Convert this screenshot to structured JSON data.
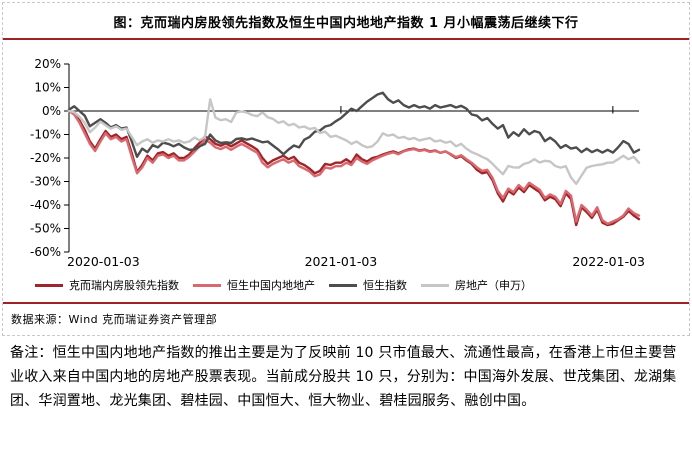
{
  "figure": {
    "title": "图：克而瑞内房股领先指数及恒生中国内地地产指数 1 月小幅震荡后继续下行",
    "source": "数据来源：Wind 克而瑞证券资产管理部",
    "note": "备注：恒生中国内地地产指数的推出主要是为了反映前 10 只市值最大、流通性最高，在香港上市但主要营业收入来自中国内地的房地产股票表现。当前成分股共 10 只，分别为：中国海外发展、世茂集团、龙湖集团、华润置地、龙光集团、碧桂园、中国恒大、恒大物业、碧桂园服务、融创中国。",
    "accent_color": "#9e2228"
  },
  "legend": {
    "items": [
      {
        "label": "克而瑞内房股领先指数",
        "color": "#a0252b"
      },
      {
        "label": "恒生中国内地地产",
        "color": "#d9696f"
      },
      {
        "label": "恒生指数",
        "color": "#4d4d4d"
      },
      {
        "label": "房地产（申万）",
        "color": "#c6c6c6"
      }
    ]
  },
  "chart_data": {
    "type": "line",
    "title": "",
    "xlabel": "",
    "ylabel": "",
    "ylim": [
      -60,
      20
    ],
    "y_ticks": [
      20,
      10,
      0,
      -10,
      -20,
      -30,
      -40,
      -50,
      -60
    ],
    "y_tick_suffix": "%",
    "grid": false,
    "x_tick_labels": [
      "2020-01-03",
      "2021-01-03",
      "2022-01-03"
    ],
    "x_tick_positions": [
      0,
      52,
      104
    ],
    "x_unit": "week",
    "legend_position": "bottom",
    "series": [
      {
        "name": "克而瑞内房股领先指数",
        "color": "#a0252b",
        "values": [
          0,
          -1,
          -4,
          -8,
          -13,
          -16,
          -12,
          -8.5,
          -11,
          -10,
          -12,
          -11,
          -18,
          -26,
          -23,
          -19,
          -21,
          -18,
          -17.5,
          -19,
          -18,
          -20,
          -20,
          -18.5,
          -15.8,
          -13.5,
          -10.8,
          -12,
          -14,
          -14.8,
          -13.8,
          -15,
          -13.8,
          -12.5,
          -13.8,
          -15,
          -16.5,
          -20,
          -22.5,
          -21,
          -20,
          -19,
          -20.5,
          -19.5,
          -22,
          -23,
          -24.5,
          -26.5,
          -25.5,
          -22.5,
          -23,
          -22,
          -22,
          -20.5,
          -22,
          -18.5,
          -20.5,
          -21.5,
          -20,
          -19.5,
          -18.5,
          -17.8,
          -17.2,
          -18,
          -17,
          -16.3,
          -16,
          -16.8,
          -16.4,
          -17.2,
          -16.8,
          -17.8,
          -17.2,
          -18.5,
          -20,
          -19.2,
          -21,
          -22.5,
          -25,
          -26.5,
          -26,
          -29.5,
          -35,
          -38.5,
          -34,
          -35.5,
          -32.5,
          -34.5,
          -31.5,
          -33,
          -34.5,
          -38,
          -36.5,
          -37.5,
          -40.5,
          -35,
          -37.5,
          -48.5,
          -41,
          -43,
          -45.5,
          -42,
          -47.5,
          -48.5,
          -48,
          -46.5,
          -45,
          -42.5,
          -44.5,
          -46
        ]
      },
      {
        "name": "恒生中国内地地产",
        "color": "#d9696f",
        "values": [
          0,
          -1.5,
          -5,
          -9.5,
          -14,
          -17,
          -13,
          -9.5,
          -12,
          -11,
          -13,
          -12,
          -19.5,
          -26.5,
          -24,
          -20,
          -22,
          -19,
          -18.5,
          -20,
          -19,
          -21,
          -21,
          -19.5,
          -17.3,
          -15,
          -12.2,
          -13.5,
          -15.5,
          -16.2,
          -15.2,
          -16.5,
          -15.2,
          -14,
          -15.2,
          -16.5,
          -17.8,
          -22,
          -24,
          -22.5,
          -21.5,
          -20.5,
          -22,
          -21,
          -23.5,
          -24.5,
          -25.8,
          -27.8,
          -27,
          -24,
          -24.5,
          -23.5,
          -23.5,
          -22,
          -23,
          -20,
          -21.5,
          -22.5,
          -21,
          -20,
          -19,
          -18.2,
          -17.6,
          -18.4,
          -17.2,
          -16.6,
          -16.2,
          -17,
          -16.6,
          -17.4,
          -17,
          -17.8,
          -17.2,
          -18.3,
          -19.6,
          -18.8,
          -20.5,
          -22,
          -24,
          -25.5,
          -25,
          -28.5,
          -34,
          -37,
          -33,
          -34.5,
          -31.5,
          -33.5,
          -30.5,
          -32,
          -33.5,
          -37,
          -35.5,
          -36.5,
          -39.5,
          -34,
          -36,
          -47,
          -40,
          -42,
          -44.5,
          -41,
          -46.5,
          -48,
          -47,
          -46,
          -44.5,
          -41.5,
          -43.5,
          -44.5
        ]
      },
      {
        "name": "恒生指数",
        "color": "#4d4d4d",
        "values": [
          0.5,
          2,
          0,
          -2,
          -6.5,
          -5,
          -3.5,
          -5,
          -7,
          -6,
          -7.5,
          -7,
          -13,
          -19.5,
          -16,
          -17.5,
          -14.5,
          -15.5,
          -13.5,
          -14,
          -15,
          -14,
          -15.5,
          -16.5,
          -16.4,
          -15,
          -14,
          -10,
          -12.5,
          -13.6,
          -13.3,
          -13.6,
          -11.9,
          -11.6,
          -12.2,
          -11.7,
          -12.5,
          -13.3,
          -13,
          -14.7,
          -16.4,
          -18.4,
          -16.4,
          -14.7,
          -15.5,
          -12.2,
          -11,
          -8.8,
          -8.3,
          -6.6,
          -6,
          -4.4,
          -3,
          -1,
          1,
          0,
          2,
          4,
          5.5,
          7,
          7.8,
          5,
          3.5,
          4.5,
          2.5,
          1.5,
          2.5,
          1.5,
          2,
          1,
          2.5,
          1.5,
          2,
          2.5,
          1.5,
          2.2,
          1,
          -1.5,
          -2,
          -4,
          -3,
          -5.5,
          -7.5,
          -6,
          -11.3,
          -9,
          -10.6,
          -7.8,
          -9.9,
          -8.5,
          -9.2,
          -12.8,
          -11.3,
          -13,
          -15.7,
          -14.5,
          -16,
          -15.5,
          -17.5,
          -16,
          -17.5,
          -16.5,
          -17.7,
          -16.5,
          -17.7,
          -15.5,
          -12.8,
          -14,
          -17.7,
          -16.5
        ]
      },
      {
        "name": "房地产（申万）",
        "color": "#c6c6c6",
        "values": [
          0,
          -0.5,
          -2.5,
          -5,
          -9,
          -7,
          -4.5,
          -6,
          -7.5,
          -6.5,
          -8,
          -7.5,
          -11,
          -14.5,
          -13,
          -12,
          -13.5,
          -12.5,
          -13,
          -12,
          -13,
          -12.5,
          -13.5,
          -13,
          -11.3,
          -12.5,
          -11,
          5,
          -2.8,
          -3.9,
          -3.5,
          -4.7,
          -0.6,
          -0.2,
          -0.6,
          -1.7,
          -2.2,
          -0.6,
          -2.7,
          -3.3,
          -5,
          -4.4,
          -6.1,
          -5.5,
          -7,
          -6.6,
          -7.7,
          -7.2,
          -9.4,
          -8.8,
          -11,
          -10.5,
          -11.5,
          -12.5,
          -14,
          -13,
          -14.5,
          -15.5,
          -15,
          -13,
          -9.5,
          -10.5,
          -10,
          -11.5,
          -11,
          -12,
          -11.5,
          -12.5,
          -12,
          -11.5,
          -13,
          -12.5,
          -13.5,
          -13,
          -15,
          -14,
          -16,
          -17.5,
          -18.4,
          -19.5,
          -20.5,
          -22.5,
          -24.8,
          -26.9,
          -23.4,
          -24,
          -24.1,
          -22.5,
          -21.9,
          -20.5,
          -21.9,
          -21.2,
          -21.5,
          -23.4,
          -24.1,
          -23.5,
          -28.3,
          -31,
          -27.5,
          -24.1,
          -23.4,
          -23,
          -22.7,
          -22,
          -21.9,
          -20.5,
          -19,
          -20.5,
          -19.5,
          -22
        ]
      }
    ]
  }
}
